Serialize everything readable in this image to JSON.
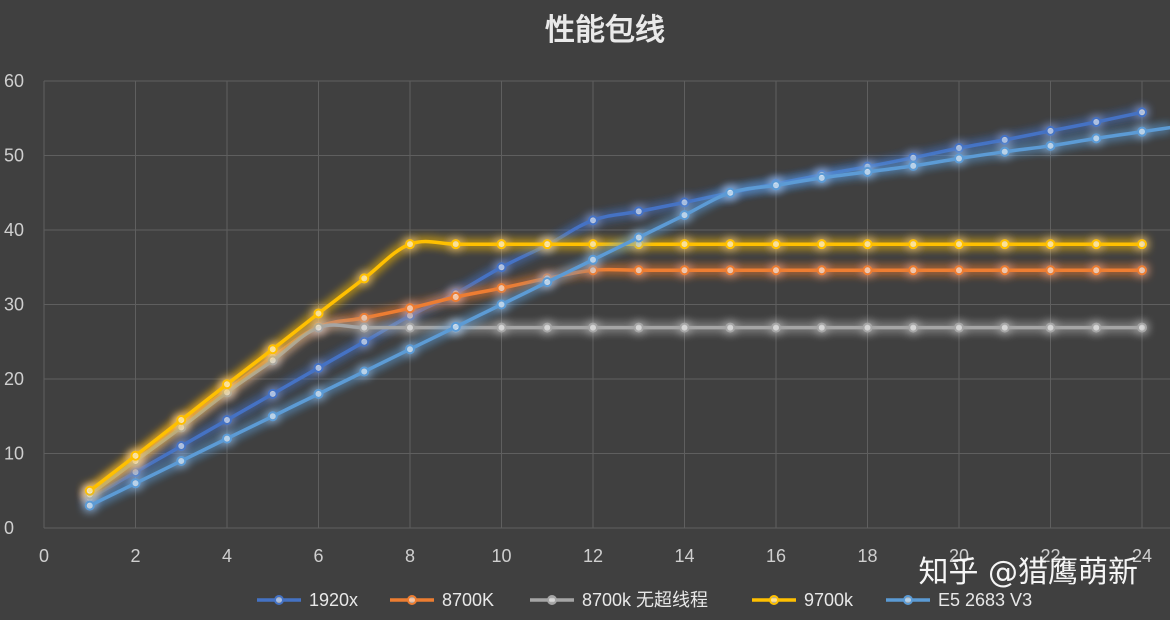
{
  "watermark": "知乎 @猎鹰萌新",
  "chart_data": {
    "type": "line",
    "title": "性能包线",
    "xlabel": "",
    "ylabel": "",
    "xlim": [
      0,
      24
    ],
    "ylim": [
      0,
      60
    ],
    "xticks": [
      0,
      2,
      4,
      6,
      8,
      10,
      12,
      14,
      16,
      18,
      20,
      22,
      24
    ],
    "yticks": [
      0,
      10,
      20,
      30,
      40,
      50,
      60
    ],
    "grid": true,
    "legend_position": "bottom",
    "series": [
      {
        "name": "1920x",
        "color": "#4472C4",
        "x": [
          1,
          2,
          3,
          4,
          5,
          6,
          7,
          8,
          9,
          10,
          11,
          12,
          13,
          14,
          15,
          16,
          17,
          18,
          19,
          20,
          21,
          22,
          23,
          24
        ],
        "y": [
          4,
          7.5,
          11,
          14.5,
          18,
          21.5,
          25,
          28.5,
          31.5,
          35,
          38,
          41.3,
          42.5,
          43.7,
          45,
          46.2,
          47.4,
          48.5,
          49.7,
          51,
          52.1,
          53.3,
          54.5,
          55.8
        ]
      },
      {
        "name": "8700K",
        "color": "#ED7D31",
        "x": [
          1,
          2,
          3,
          4,
          5,
          6,
          7,
          8,
          9,
          10,
          11,
          12,
          13,
          14,
          15,
          16,
          17,
          18,
          19,
          20,
          21,
          22,
          23,
          24
        ],
        "y": [
          4.5,
          9,
          14,
          18.5,
          23,
          27,
          28.2,
          29.5,
          31,
          32.2,
          33.5,
          34.6,
          34.6,
          34.6,
          34.6,
          34.6,
          34.6,
          34.6,
          34.6,
          34.6,
          34.6,
          34.6,
          34.6,
          34.6
        ]
      },
      {
        "name": "8700k 无超线程",
        "color": "#A5A5A5",
        "x": [
          1,
          2,
          3,
          4,
          5,
          6,
          7,
          8,
          9,
          10,
          11,
          12,
          13,
          14,
          15,
          16,
          17,
          18,
          19,
          20,
          21,
          22,
          23,
          24
        ],
        "y": [
          4.5,
          9,
          13.5,
          18.2,
          22.5,
          26.9,
          26.9,
          26.9,
          26.9,
          26.9,
          26.9,
          26.9,
          26.9,
          26.9,
          26.9,
          26.9,
          26.9,
          26.9,
          26.9,
          26.9,
          26.9,
          26.9,
          26.9,
          26.9
        ]
      },
      {
        "name": "9700k",
        "color": "#FFC000",
        "x": [
          1,
          2,
          3,
          4,
          5,
          6,
          7,
          8,
          9,
          10,
          11,
          12,
          13,
          14,
          15,
          16,
          17,
          18,
          19,
          20,
          21,
          22,
          23,
          24
        ],
        "y": [
          5,
          9.7,
          14.5,
          19.3,
          24,
          28.8,
          33.5,
          38.1,
          38.1,
          38.1,
          38.1,
          38.1,
          38.1,
          38.1,
          38.1,
          38.1,
          38.1,
          38.1,
          38.1,
          38.1,
          38.1,
          38.1,
          38.1,
          38.1
        ]
      },
      {
        "name": "E5 2683 V3",
        "color": "#5B9BD5",
        "x": [
          1,
          2,
          3,
          4,
          5,
          6,
          7,
          8,
          9,
          10,
          11,
          12,
          13,
          14,
          15,
          16,
          17,
          18,
          19,
          20,
          21,
          22,
          23,
          24
        ],
        "y": [
          3,
          6,
          9,
          12,
          15,
          18,
          21,
          24,
          27,
          30,
          33,
          36,
          39,
          42,
          45,
          46,
          47,
          47.8,
          48.6,
          49.6,
          50.5,
          51.3,
          52.3,
          53.2
        ]
      }
    ]
  }
}
